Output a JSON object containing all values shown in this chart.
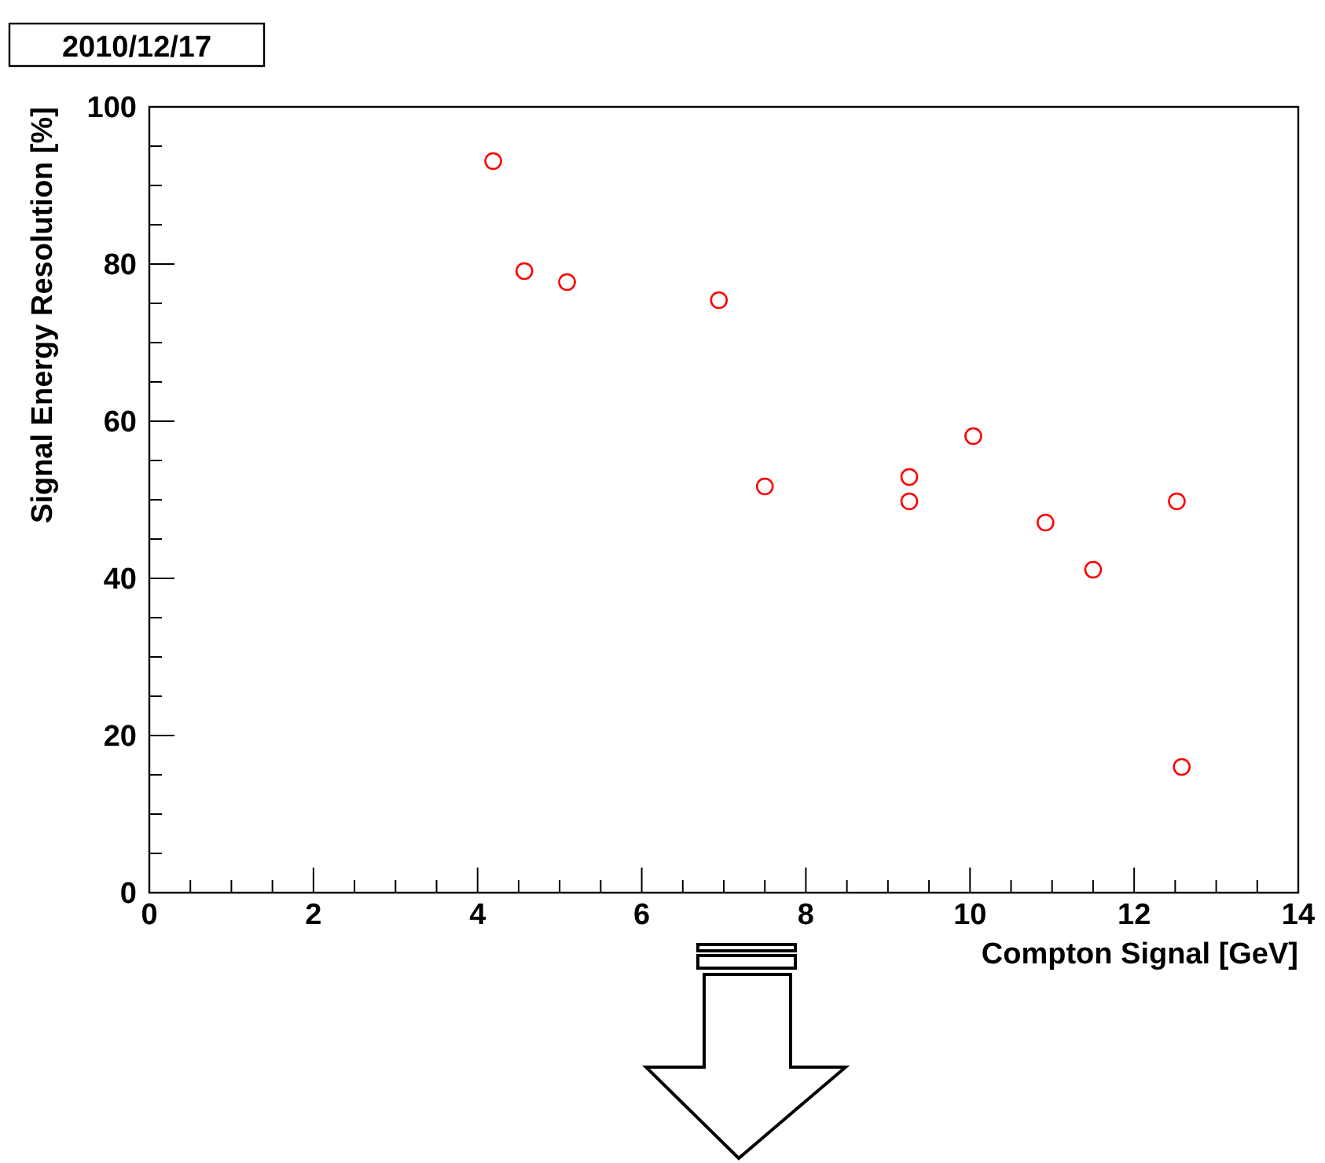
{
  "chart_data": {
    "type": "scatter",
    "xlabel": "Compton Signal [GeV]",
    "ylabel": "Signal Energy Resolution [%]",
    "annotations": [
      "2010/12/17"
    ],
    "x": [
      4.19,
      4.57,
      5.09,
      6.94,
      7.5,
      9.26,
      9.26,
      10.04,
      10.92,
      11.5,
      12.52,
      12.58
    ],
    "series": [
      {
        "color": "#ff0000",
        "values": [
          93.1,
          79.1,
          77.7,
          75.4,
          51.7,
          52.9,
          49.8,
          58.1,
          47.1,
          41.1,
          49.8,
          16.0
        ]
      }
    ],
    "marker": "circle",
    "xlim": [
      0,
      14
    ],
    "ylim": [
      0,
      100
    ],
    "xticks": [
      0,
      {
        "value": 0.5,
        "label": null
      },
      {
        "value": 1,
        "label": null
      },
      {
        "value": 1.5,
        "label": null
      },
      2,
      {
        "value": 2.5,
        "label": null
      },
      {
        "value": 3,
        "label": null
      },
      {
        "value": 3.5,
        "label": null
      },
      4,
      {
        "value": 4.5,
        "label": null
      },
      {
        "value": 5,
        "label": null
      },
      {
        "value": 5.5,
        "label": null
      },
      6,
      {
        "value": 6.5,
        "label": null
      },
      {
        "value": 7,
        "label": null
      },
      {
        "value": 7.5,
        "label": null
      },
      8,
      {
        "value": 8.5,
        "label": null
      },
      {
        "value": 9,
        "label": null
      },
      {
        "value": 9.5,
        "label": null
      },
      10,
      {
        "value": 10.5,
        "label": null
      },
      {
        "value": 11,
        "label": null
      },
      {
        "value": 11.5,
        "label": null
      },
      12,
      {
        "value": 12.5,
        "label": null
      },
      {
        "value": 13,
        "label": null
      },
      {
        "value": 13.5,
        "label": null
      },
      14
    ],
    "yticks": [
      0,
      {
        "value": 5,
        "label": null
      },
      {
        "value": 10,
        "label": null
      },
      {
        "value": 15,
        "label": null
      },
      20,
      {
        "value": 25,
        "label": null
      },
      {
        "value": 30,
        "label": null
      },
      {
        "value": 35,
        "label": null
      },
      40,
      {
        "value": 45,
        "label": null
      },
      {
        "value": 50,
        "label": null
      },
      {
        "value": 55,
        "label": null
      },
      60,
      {
        "value": 65,
        "label": null
      },
      {
        "value": 70,
        "label": null
      },
      {
        "value": 75,
        "label": null
      },
      80,
      {
        "value": 85,
        "label": null
      },
      {
        "value": 90,
        "label": null
      },
      {
        "value": 95,
        "label": null
      },
      100
    ],
    "grid": false
  }
}
